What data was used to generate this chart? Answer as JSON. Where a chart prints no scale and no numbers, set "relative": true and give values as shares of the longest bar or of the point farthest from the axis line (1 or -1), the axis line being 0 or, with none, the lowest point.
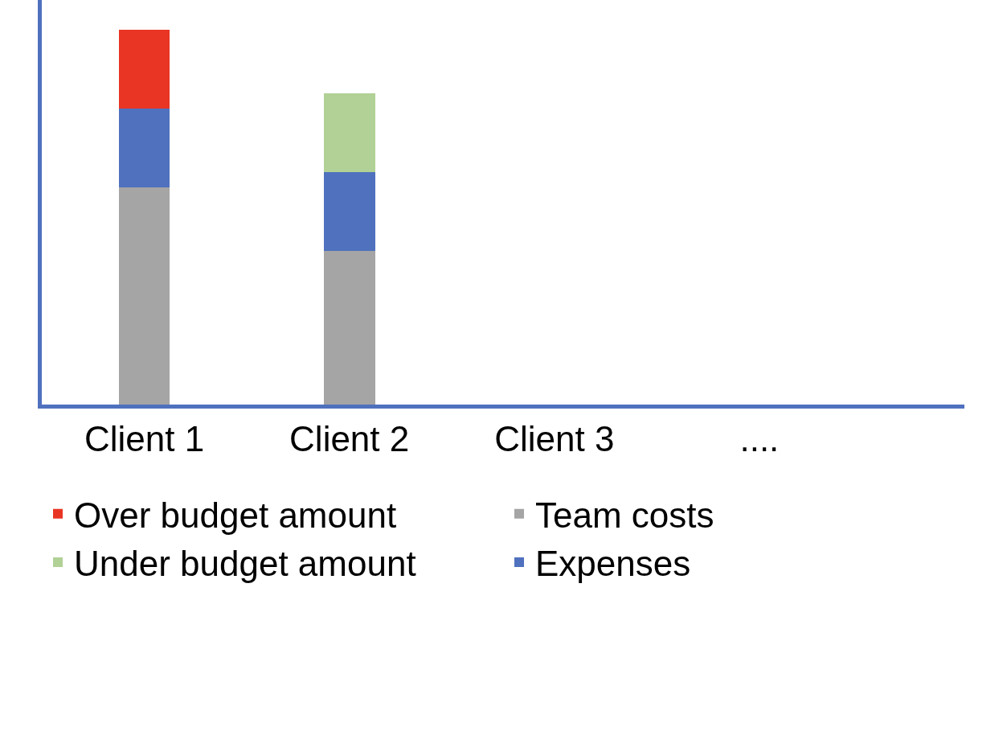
{
  "chart_data": {
    "type": "bar",
    "stacked": true,
    "relative": true,
    "legend": "bottom",
    "categories": [
      "Client 1",
      "Client 2",
      "Client 3",
      "...."
    ],
    "series": [
      {
        "name": "Team costs",
        "color": "#a5a5a5",
        "values": [
          0.58,
          0.41,
          null,
          null
        ]
      },
      {
        "name": "Expenses",
        "color": "#4f71be",
        "values": [
          0.21,
          0.21,
          null,
          null
        ]
      },
      {
        "name": "Over budget amount",
        "color": "#e83524",
        "values": [
          0.21,
          null,
          null,
          null
        ]
      },
      {
        "name": "Under budget amount",
        "color": "#b1d196",
        "values": [
          null,
          0.21,
          null,
          null
        ]
      }
    ]
  }
}
